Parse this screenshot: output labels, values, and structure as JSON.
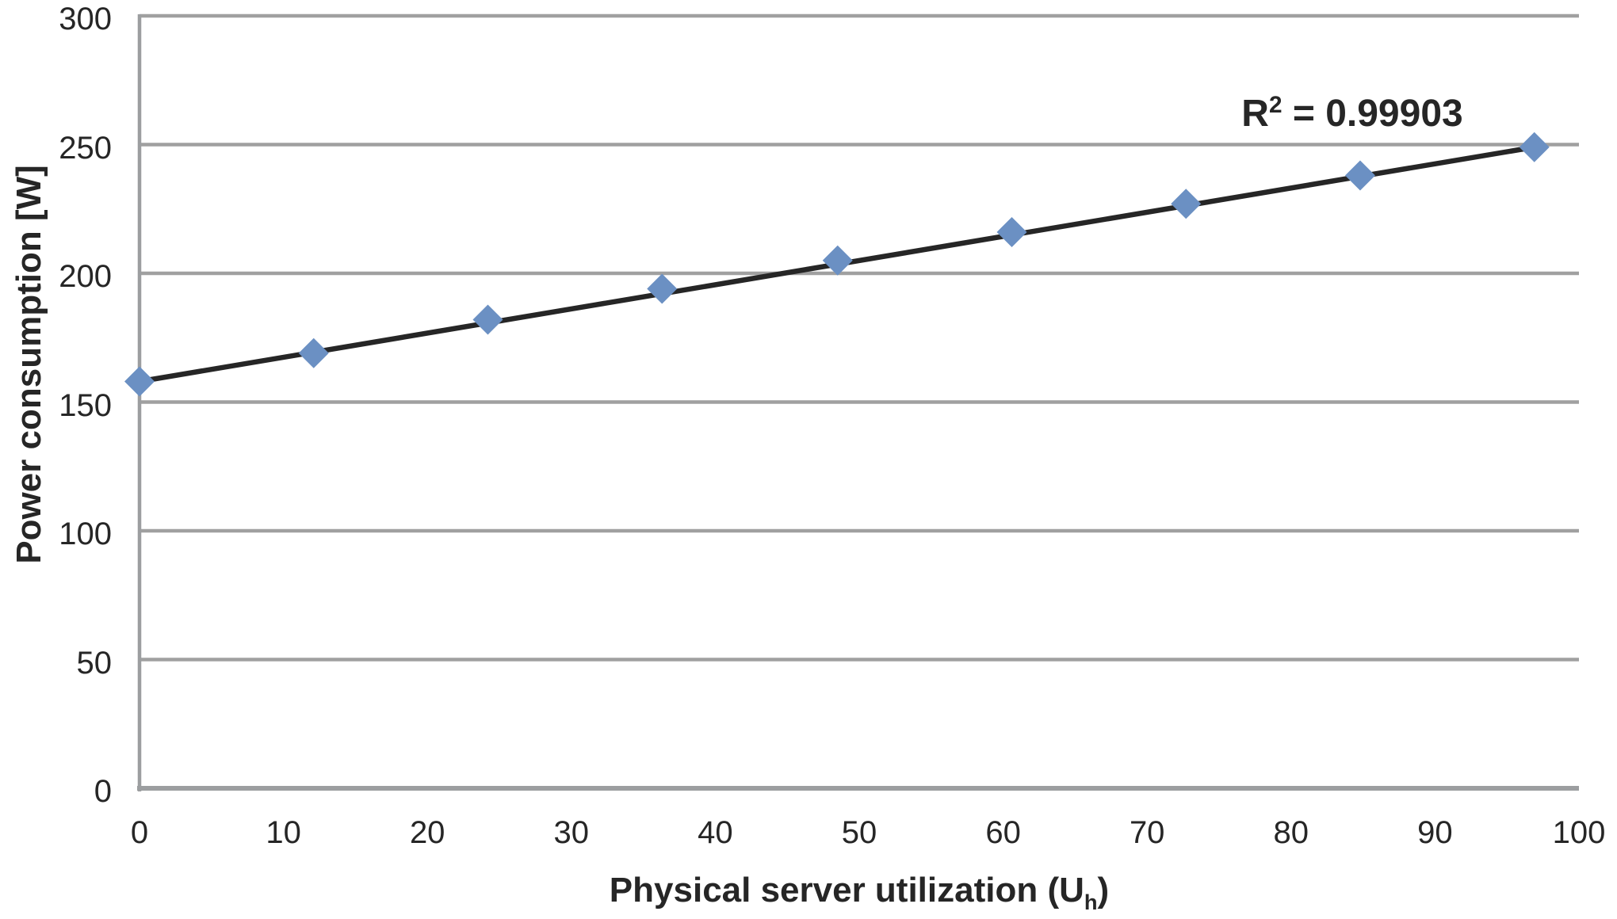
{
  "chart_data": {
    "type": "scatter",
    "title": "",
    "xlabel": "Physical server utilization (U_h)",
    "ylabel": "Power consumption [W]",
    "annotation": "R² = 0.99903",
    "marker_shape": "diamond",
    "grid": true,
    "legend": false,
    "xlim": [
      0,
      100
    ],
    "ylim": [
      0,
      300
    ],
    "x_ticks": [
      0,
      10,
      20,
      30,
      40,
      50,
      60,
      70,
      80,
      90,
      100
    ],
    "y_ticks": [
      0,
      50,
      100,
      150,
      200,
      250,
      300
    ],
    "x": [
      0,
      12.1,
      24.2,
      36.3,
      48.5,
      60.6,
      72.7,
      84.8,
      96.9
    ],
    "y": [
      158,
      169,
      182,
      194,
      205,
      216,
      227,
      238,
      249
    ],
    "trendline": {
      "x1": 0,
      "y1": 158,
      "x2": 96.9,
      "y2": 249
    },
    "colors": {
      "marker": "#6B90C3",
      "trendline": "#262626",
      "gridline": "#A0A0A0",
      "axis": "#9C9EA0",
      "text": "#262626"
    }
  },
  "labels": {
    "ylabel": "Power consumption [W]",
    "xlabel_main": "Physical server utilization (U",
    "xlabel_sub": "h",
    "xlabel_close": ")",
    "r2_base": "R",
    "r2_exponent": "2",
    "r2_rest": " = 0.99903"
  }
}
